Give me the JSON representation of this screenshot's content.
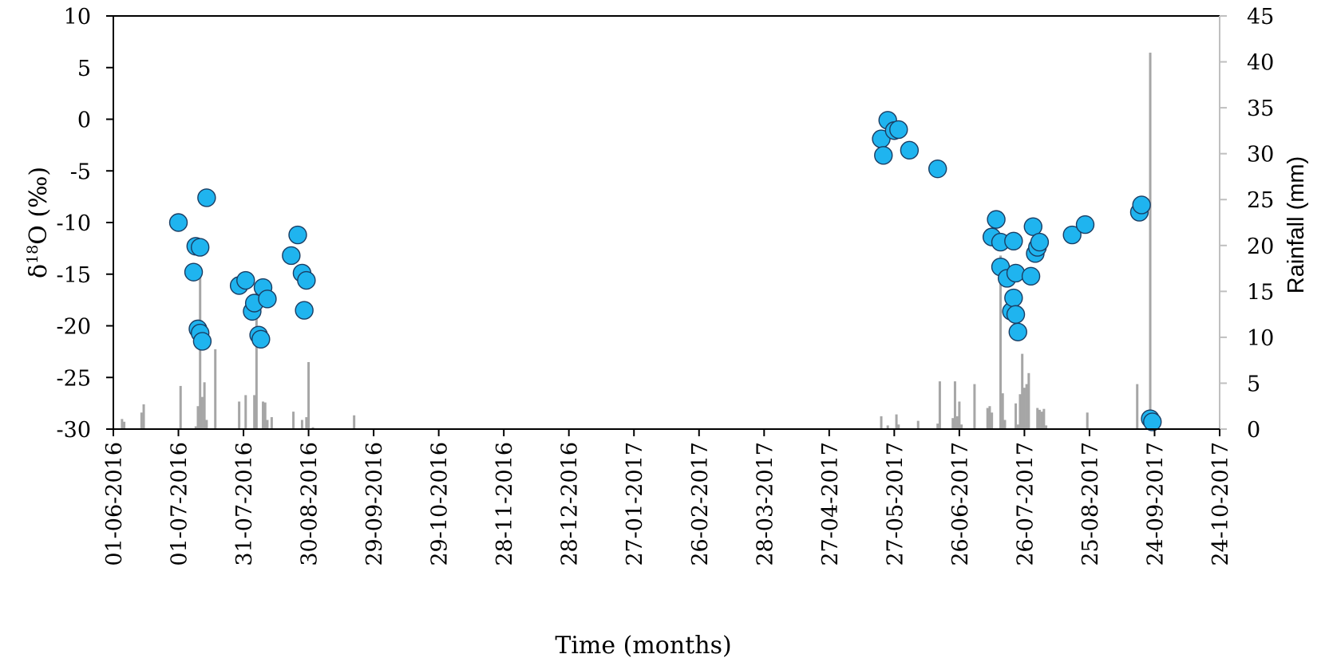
{
  "chart_data": {
    "type": "scatter",
    "xlabel": "Time (months)",
    "ylabel": "δ18O (‰)",
    "ylabel_parts": {
      "base": "δ",
      "sup": "18",
      "rest": "O (‰)"
    },
    "y2label": "Rainfall (mm)",
    "x_tick_labels": [
      "01-06-2016",
      "01-07-2016",
      "31-07-2016",
      "30-08-2016",
      "29-09-2016",
      "29-10-2016",
      "28-11-2016",
      "28-12-2016",
      "27-01-2017",
      "26-02-2017",
      "28-03-2017",
      "27-04-2017",
      "27-05-2017",
      "26-06-2017",
      "26-07-2017",
      "25-08-2017",
      "24-09-2017",
      "24-10-2017"
    ],
    "xlim": [
      "2016-06-01",
      "2017-10-24"
    ],
    "ylim": [
      -30,
      10
    ],
    "y_ticks": [
      -30,
      -25,
      -20,
      -15,
      -10,
      -5,
      0,
      5,
      10
    ],
    "y2lim": [
      0,
      45
    ],
    "y2_ticks": [
      0,
      5,
      10,
      15,
      20,
      25,
      30,
      35,
      40,
      45
    ],
    "grid": false,
    "legend": "none",
    "colors": {
      "points": "#1fb4ef",
      "point_edge": "#1a3d63",
      "bars": "#a6a6a6"
    },
    "series": [
      {
        "type": "scatter",
        "axis": "left",
        "points": [
          {
            "x": "2016-07-01",
            "y": -10.0
          },
          {
            "x": "2016-07-08",
            "y": -14.8
          },
          {
            "x": "2016-07-09",
            "y": -12.3
          },
          {
            "x": "2016-07-10",
            "y": -20.3
          },
          {
            "x": "2016-07-11",
            "y": -12.4
          },
          {
            "x": "2016-07-11",
            "y": -20.7
          },
          {
            "x": "2016-07-12",
            "y": -21.5
          },
          {
            "x": "2016-07-14",
            "y": -7.6
          },
          {
            "x": "2016-07-29",
            "y": -16.1
          },
          {
            "x": "2016-08-01",
            "y": -15.6
          },
          {
            "x": "2016-08-04",
            "y": -18.6
          },
          {
            "x": "2016-08-05",
            "y": -17.8
          },
          {
            "x": "2016-08-07",
            "y": -20.9
          },
          {
            "x": "2016-08-08",
            "y": -21.3
          },
          {
            "x": "2016-08-09",
            "y": -16.3
          },
          {
            "x": "2016-08-11",
            "y": -17.4
          },
          {
            "x": "2016-08-22",
            "y": -13.2
          },
          {
            "x": "2016-08-25",
            "y": -11.2
          },
          {
            "x": "2016-08-27",
            "y": -14.9
          },
          {
            "x": "2016-08-28",
            "y": -18.5
          },
          {
            "x": "2016-08-29",
            "y": -15.6
          },
          {
            "x": "2017-05-21",
            "y": -1.9
          },
          {
            "x": "2017-05-22",
            "y": -3.5
          },
          {
            "x": "2017-05-24",
            "y": -0.1
          },
          {
            "x": "2017-05-27",
            "y": -1.1
          },
          {
            "x": "2017-05-29",
            "y": -1.0
          },
          {
            "x": "2017-06-03",
            "y": -3.0
          },
          {
            "x": "2017-06-16",
            "y": -4.8
          },
          {
            "x": "2017-07-11",
            "y": -11.4
          },
          {
            "x": "2017-07-13",
            "y": -9.7
          },
          {
            "x": "2017-07-15",
            "y": -11.9
          },
          {
            "x": "2017-07-15",
            "y": -14.3
          },
          {
            "x": "2017-07-18",
            "y": -15.4
          },
          {
            "x": "2017-07-20",
            "y": -18.6
          },
          {
            "x": "2017-07-21",
            "y": -11.8
          },
          {
            "x": "2017-07-21",
            "y": -17.3
          },
          {
            "x": "2017-07-22",
            "y": -14.9
          },
          {
            "x": "2017-07-22",
            "y": -18.9
          },
          {
            "x": "2017-07-23",
            "y": -20.6
          },
          {
            "x": "2017-07-29",
            "y": -15.2
          },
          {
            "x": "2017-07-30",
            "y": -10.4
          },
          {
            "x": "2017-07-31",
            "y": -13.0
          },
          {
            "x": "2017-08-01",
            "y": -12.4
          },
          {
            "x": "2017-08-02",
            "y": -11.9
          },
          {
            "x": "2017-08-17",
            "y": -11.2
          },
          {
            "x": "2017-08-23",
            "y": -10.2
          },
          {
            "x": "2017-09-17",
            "y": -9.0
          },
          {
            "x": "2017-09-18",
            "y": -8.3
          },
          {
            "x": "2017-09-22",
            "y": -29.0
          },
          {
            "x": "2017-09-23",
            "y": -29.3
          }
        ]
      },
      {
        "type": "bar",
        "axis": "right",
        "points": [
          {
            "x": "2016-06-05",
            "y": 1.1
          },
          {
            "x": "2016-06-06",
            "y": 0.8
          },
          {
            "x": "2016-06-14",
            "y": 1.8
          },
          {
            "x": "2016-06-15",
            "y": 2.7
          },
          {
            "x": "2016-07-02",
            "y": 4.7
          },
          {
            "x": "2016-07-09",
            "y": 0.3
          },
          {
            "x": "2016-07-10",
            "y": 2.5
          },
          {
            "x": "2016-07-11",
            "y": 16.7
          },
          {
            "x": "2016-07-12",
            "y": 3.5
          },
          {
            "x": "2016-07-13",
            "y": 5.1
          },
          {
            "x": "2016-07-14",
            "y": 1.0
          },
          {
            "x": "2016-07-18",
            "y": 8.7
          },
          {
            "x": "2016-07-29",
            "y": 3.0
          },
          {
            "x": "2016-08-01",
            "y": 3.7
          },
          {
            "x": "2016-08-05",
            "y": 3.7
          },
          {
            "x": "2016-08-06",
            "y": 15.0
          },
          {
            "x": "2016-08-09",
            "y": 3.0
          },
          {
            "x": "2016-08-10",
            "y": 2.9
          },
          {
            "x": "2016-08-11",
            "y": 1.0
          },
          {
            "x": "2016-08-13",
            "y": 1.3
          },
          {
            "x": "2016-08-23",
            "y": 1.9
          },
          {
            "x": "2016-08-27",
            "y": 1.0
          },
          {
            "x": "2016-08-29",
            "y": 1.3
          },
          {
            "x": "2016-08-30",
            "y": 7.3
          },
          {
            "x": "2016-09-01",
            "y": 0.2
          },
          {
            "x": "2016-09-20",
            "y": 1.5
          },
          {
            "x": "2017-05-21",
            "y": 1.4
          },
          {
            "x": "2017-05-24",
            "y": 0.4
          },
          {
            "x": "2017-05-28",
            "y": 1.6
          },
          {
            "x": "2017-05-29",
            "y": 0.5
          },
          {
            "x": "2017-06-07",
            "y": 0.9
          },
          {
            "x": "2017-06-16",
            "y": 0.6
          },
          {
            "x": "2017-06-17",
            "y": 5.2
          },
          {
            "x": "2017-06-23",
            "y": 1.2
          },
          {
            "x": "2017-06-24",
            "y": 5.2
          },
          {
            "x": "2017-06-25",
            "y": 1.4
          },
          {
            "x": "2017-06-26",
            "y": 3.0
          },
          {
            "x": "2017-06-27",
            "y": 0.5
          },
          {
            "x": "2017-07-03",
            "y": 4.9
          },
          {
            "x": "2017-07-09",
            "y": 2.3
          },
          {
            "x": "2017-07-10",
            "y": 2.5
          },
          {
            "x": "2017-07-11",
            "y": 1.8
          },
          {
            "x": "2017-07-15",
            "y": 18.9
          },
          {
            "x": "2017-07-16",
            "y": 3.9
          },
          {
            "x": "2017-07-17",
            "y": 1.0
          },
          {
            "x": "2017-07-22",
            "y": 2.8
          },
          {
            "x": "2017-07-23",
            "y": 0.5
          },
          {
            "x": "2017-07-24",
            "y": 3.8
          },
          {
            "x": "2017-07-25",
            "y": 8.2
          },
          {
            "x": "2017-07-26",
            "y": 4.5
          },
          {
            "x": "2017-07-27",
            "y": 4.9
          },
          {
            "x": "2017-07-28",
            "y": 6.1
          },
          {
            "x": "2017-08-01",
            "y": 2.3
          },
          {
            "x": "2017-08-02",
            "y": 2.1
          },
          {
            "x": "2017-08-03",
            "y": 1.9
          },
          {
            "x": "2017-08-04",
            "y": 2.2
          },
          {
            "x": "2017-08-05",
            "y": 0.4
          },
          {
            "x": "2017-08-24",
            "y": 1.8
          },
          {
            "x": "2017-09-16",
            "y": 4.9
          },
          {
            "x": "2017-09-22",
            "y": 41.0
          }
        ]
      }
    ]
  }
}
